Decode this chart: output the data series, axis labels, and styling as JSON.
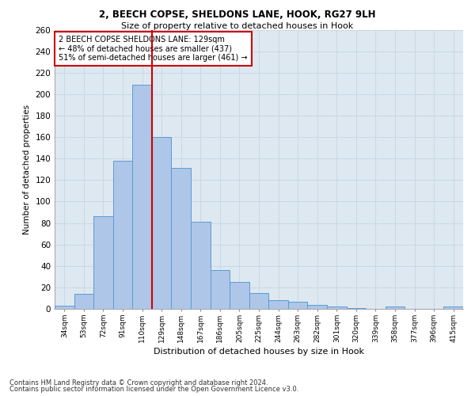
{
  "title1": "2, BEECH COPSE, SHELDONS LANE, HOOK, RG27 9LH",
  "title2": "Size of property relative to detached houses in Hook",
  "xlabel": "Distribution of detached houses by size in Hook",
  "ylabel": "Number of detached properties",
  "bin_labels": [
    "34sqm",
    "53sqm",
    "72sqm",
    "91sqm",
    "110sqm",
    "129sqm",
    "148sqm",
    "167sqm",
    "186sqm",
    "205sqm",
    "225sqm",
    "244sqm",
    "263sqm",
    "282sqm",
    "301sqm",
    "320sqm",
    "339sqm",
    "358sqm",
    "377sqm",
    "396sqm",
    "415sqm"
  ],
  "bar_values": [
    3,
    14,
    86,
    138,
    209,
    160,
    131,
    81,
    36,
    25,
    15,
    8,
    7,
    4,
    2,
    1,
    0,
    2,
    0,
    0,
    2
  ],
  "bar_color": "#aec6e8",
  "bar_edge_color": "#5b9bd5",
  "grid_color": "#c8d8e8",
  "background_color": "#dde8f0",
  "vline_color": "#cc0000",
  "vline_x_index": 4.5,
  "annotation_line1": "2 BEECH COPSE SHELDONS LANE: 129sqm",
  "annotation_line2": "← 48% of detached houses are smaller (437)",
  "annotation_line3": "51% of semi-detached houses are larger (461) →",
  "annotation_box_color": "white",
  "annotation_box_edge_color": "#cc0000",
  "ylim_max": 260,
  "yticks": [
    0,
    20,
    40,
    60,
    80,
    100,
    120,
    140,
    160,
    180,
    200,
    220,
    240,
    260
  ],
  "footer1": "Contains HM Land Registry data © Crown copyright and database right 2024.",
  "footer2": "Contains public sector information licensed under the Open Government Licence v3.0."
}
